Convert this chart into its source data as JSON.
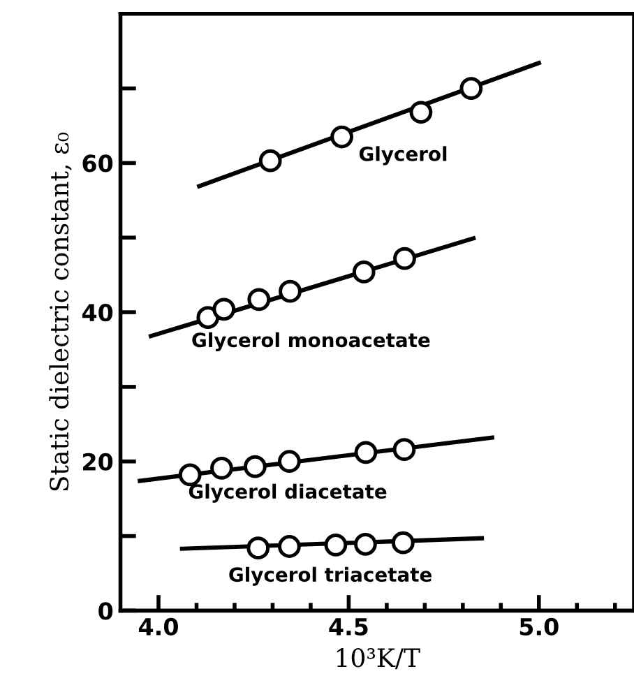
{
  "chart_data": {
    "type": "scatter",
    "xlabel": "10³K/T",
    "ylabel": "Static dielectric constant, ε₀",
    "xlim": [
      3.9,
      5.25
    ],
    "ylim": [
      0,
      80
    ],
    "xticks": [
      {
        "value": 4.0,
        "label": "4.0"
      },
      {
        "value": 4.1,
        "label": null
      },
      {
        "value": 4.2,
        "label": null
      },
      {
        "value": 4.3,
        "label": null
      },
      {
        "value": 4.4,
        "label": null
      },
      {
        "value": 4.5,
        "label": "4.5"
      },
      {
        "value": 4.6,
        "label": null
      },
      {
        "value": 4.7,
        "label": null
      },
      {
        "value": 4.8,
        "label": null
      },
      {
        "value": 4.9,
        "label": null
      },
      {
        "value": 5.0,
        "label": "5.0"
      },
      {
        "value": 5.1,
        "label": null
      },
      {
        "value": 5.2,
        "label": null
      }
    ],
    "yticks": [
      0,
      {
        "value": 10,
        "label": null
      },
      20,
      {
        "value": 30,
        "label": null
      },
      40,
      {
        "value": 50,
        "label": null
      },
      60,
      {
        "value": 70,
        "label": null
      }
    ],
    "grid": false,
    "legend": false,
    "series": [
      {
        "name": "Glycerol",
        "marker": "circle",
        "color": "#000000",
        "x": [
          4.294,
          4.482,
          4.69,
          4.822
        ],
        "values": [
          60.3,
          63.5,
          66.8,
          70.0
        ]
      },
      {
        "type": "line",
        "marker": "none",
        "line_style": "solid",
        "color": "#000000",
        "x": [
          4.107,
          5.0
        ],
        "values": [
          56.9,
          73.4
        ]
      },
      {
        "name": "Glycerol monoacetate",
        "marker": "circle",
        "color": "#000000",
        "x": [
          4.13,
          4.172,
          4.264,
          4.346,
          4.54,
          4.647
        ],
        "values": [
          39.3,
          40.4,
          41.7,
          42.8,
          45.4,
          47.2
        ]
      },
      {
        "type": "line",
        "marker": "none",
        "line_style": "solid",
        "color": "#000000",
        "x": [
          3.98,
          4.828
        ],
        "values": [
          36.8,
          49.9
        ]
      },
      {
        "name": "Glycerol diacetate",
        "marker": "circle",
        "color": "#000000",
        "x": [
          4.083,
          4.166,
          4.254,
          4.344,
          4.545,
          4.646
        ],
        "values": [
          18.2,
          19.1,
          19.3,
          20.0,
          21.2,
          21.6
        ]
      },
      {
        "type": "line",
        "marker": "none",
        "line_style": "solid",
        "color": "#000000",
        "x": [
          3.951,
          4.877
        ],
        "values": [
          17.4,
          23.2
        ]
      },
      {
        "name": "Glycerol triacetate",
        "marker": "circle",
        "color": "#000000",
        "x": [
          4.262,
          4.344,
          4.466,
          4.544,
          4.643
        ],
        "values": [
          8.4,
          8.6,
          8.8,
          8.9,
          9.1
        ]
      },
      {
        "type": "line",
        "marker": "none",
        "line_style": "solid",
        "color": "#000000",
        "x": [
          4.062,
          4.85
        ],
        "values": [
          8.3,
          9.7
        ]
      }
    ]
  }
}
